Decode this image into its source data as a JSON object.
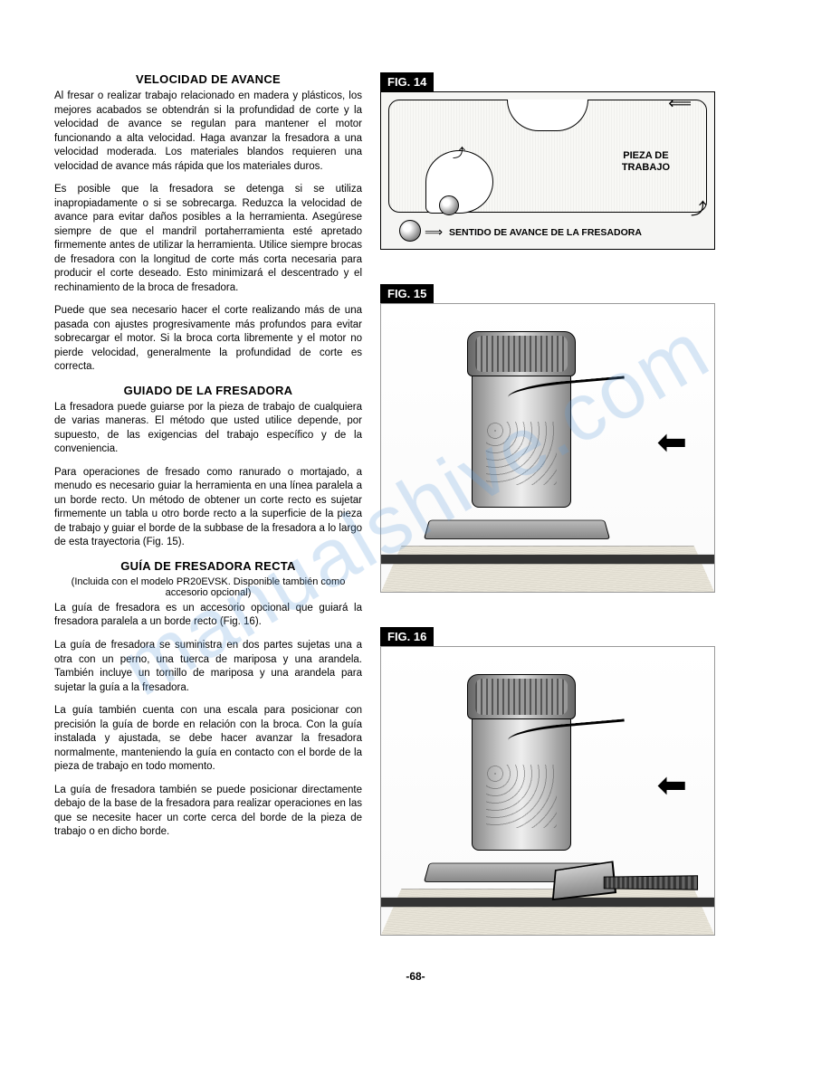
{
  "watermark_text": "manualshive.com",
  "page_number": "-68-",
  "sections": {
    "velocidad": {
      "heading": "VELOCIDAD DE AVANCE",
      "p1": "Al fresar o realizar trabajo relacionado en madera y plásticos, los mejores acabados se obtendrán si la profundidad de corte y la velocidad de avance se regulan para mantener el motor funcionando a alta velocidad. Haga avanzar la fresadora a una velocidad moderada. Los materiales blandos requieren una velocidad de avance más rápida que los materiales duros.",
      "p2": "Es posible que la fresadora se detenga si se utiliza inapropiadamente o si se sobrecarga. Reduzca la velocidad de avance para evitar daños posibles a la herramienta. Asegúrese siempre de que el mandril portaherramienta esté apretado firmemente antes de utilizar la herramienta. Utilice siempre brocas de fresadora con la longitud de corte más corta necesaria para producir el corte deseado. Esto minimizará el descentrado y el rechinamiento de la broca de fresadora.",
      "p3": "Puede que sea necesario hacer el corte realizando más de una pasada con ajustes progresivamente más profundos para evitar sobrecargar el motor. Si la broca corta libremente y el motor no pierde velocidad, generalmente la profundidad de corte es correcta."
    },
    "guiado": {
      "heading": "GUIADO DE LA FRESADORA",
      "p1": "La fresadora puede guiarse por la pieza de trabajo de cualquiera de varias maneras. El método que usted utilice depende, por supuesto, de las exigencias del trabajo específico y de la conveniencia.",
      "p2": "Para operaciones de fresado como ranurado o mortajado, a menudo es necesario guiar la herramienta en una línea paralela a un borde recto. Un método de obtener un corte recto es sujetar firmemente un tabla u otro borde recto a la superficie de la pieza de trabajo y guiar el borde de la subbase de la fresadora a lo largo de esta trayectoria (Fig. 15)."
    },
    "guia_recta": {
      "heading": "GUÍA DE FRESADORA RECTA",
      "subheading": "(Incluida con el modelo PR20EVSK. Disponible también como accesorio opcional)",
      "p1": "La guía de fresadora es un accesorio opcional que guiará la fresadora paralela a un borde recto (Fig. 16).",
      "p2": "La guía de fresadora se suministra en dos partes sujetas una a otra con un perno, una tuerca de mariposa y una arandela. También incluye un tornillo de mariposa y una arandela para sujetar la guía a la fresadora.",
      "p3": "La guía también cuenta con una escala para posicionar con precisión la guía de borde en relación con la broca. Con la guía instalada y ajustada, se debe hacer avanzar la fresadora normalmente, manteniendo la guía en contacto con el borde de la pieza de trabajo en todo momento.",
      "p4": "La guía de fresadora también se puede posicionar directamente debajo de la base de la fresadora para realizar operaciones en las que se necesite hacer un corte cerca del borde de la pieza de trabajo o en dicho borde."
    }
  },
  "figures": {
    "fig14": {
      "label": "FIG. 14",
      "pieza_label": "PIEZA DE\nTRABAJO",
      "sentido_label": "SENTIDO DE AVANCE DE LA FRESADORA"
    },
    "fig15": {
      "label": "FIG. 15"
    },
    "fig16": {
      "label": "FIG. 16"
    }
  }
}
